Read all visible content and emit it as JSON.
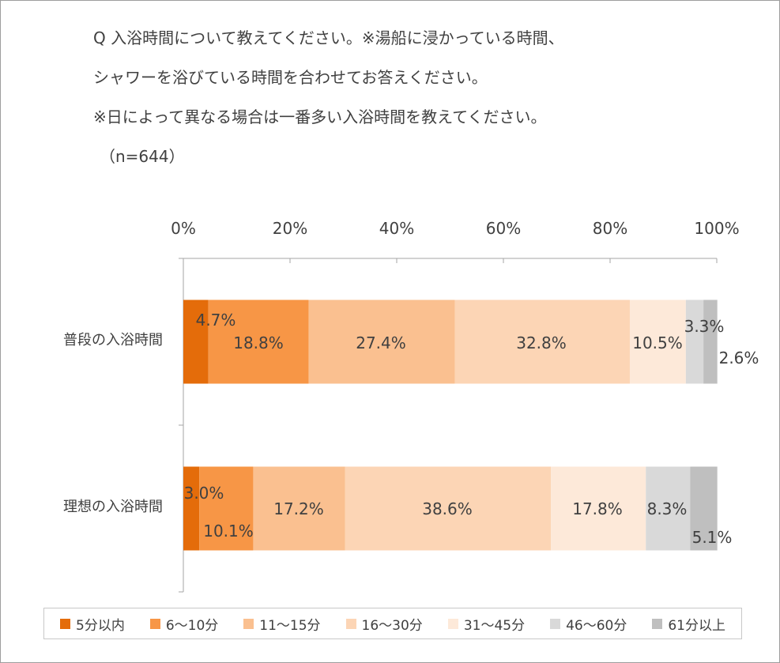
{
  "question": {
    "line1": "Q 入浴時間について教えてください。※湯船に浸かっている時間、",
    "line2": "シャワーを浴びている時間を合わせてお答えください。",
    "line3": "※日によって異なる場合は一番多い入浴時間を教えてください。",
    "n": "（n=644）"
  },
  "chart_data": {
    "type": "bar",
    "orientation": "horizontal",
    "stacked": "percent",
    "xlim": [
      0,
      100
    ],
    "x_ticks": [
      "0%",
      "20%",
      "40%",
      "60%",
      "80%",
      "100%"
    ],
    "categories": [
      "普段の入浴時間",
      "理想の入浴時間"
    ],
    "series": [
      {
        "name": "5分以内",
        "color": "#e46c0a",
        "values": [
          4.7,
          3.0
        ],
        "labels": [
          "4.7%",
          "3.0%"
        ]
      },
      {
        "name": "6～10分",
        "color": "#f79646",
        "values": [
          18.8,
          10.1
        ],
        "labels": [
          "18.8%",
          "10.1%"
        ]
      },
      {
        "name": "11～15分",
        "color": "#fac090",
        "values": [
          27.4,
          17.2
        ],
        "labels": [
          "27.4%",
          "17.2%"
        ]
      },
      {
        "name": "16～30分",
        "color": "#fcd5b5",
        "values": [
          32.8,
          38.6
        ],
        "labels": [
          "32.8%",
          "38.6%"
        ]
      },
      {
        "name": "31～45分",
        "color": "#fde9d9",
        "values": [
          10.5,
          17.8
        ],
        "labels": [
          "10.5%",
          "17.8%"
        ]
      },
      {
        "name": "46～60分",
        "color": "#d9d9d9",
        "values": [
          3.3,
          8.3
        ],
        "labels": [
          "3.3%",
          "8.3%"
        ]
      },
      {
        "name": "61分以上",
        "color": "#bfbfbf",
        "values": [
          2.6,
          5.1
        ],
        "labels": [
          "2.6%",
          "5.1%"
        ]
      }
    ],
    "legend_position": "bottom"
  }
}
